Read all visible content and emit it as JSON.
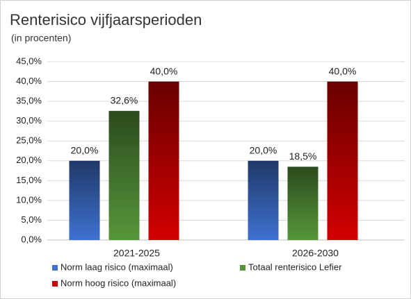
{
  "chart_data": {
    "type": "bar",
    "title": "Renterisico vijfjaarsperioden",
    "subtitle": "(in procenten)",
    "categories": [
      "2021-2025",
      "2026-2030"
    ],
    "series": [
      {
        "name": "Norm laag risico (maximaal)",
        "color": "#3f72d0",
        "values": [
          20,
          20
        ],
        "value_labels": [
          "20,0%",
          "20,0%"
        ]
      },
      {
        "name": "Totaal renterisico Lefier",
        "color": "#56963a",
        "values": [
          32.6,
          18.5
        ],
        "value_labels": [
          "32,6%",
          "18,5%"
        ]
      },
      {
        "name": "Norm hoog risico (maximaal)",
        "color": "#d20000",
        "values": [
          40,
          40
        ],
        "value_labels": [
          "40,0%",
          "40,0%"
        ]
      }
    ],
    "ylim": [
      0,
      45
    ],
    "yticks": [
      {
        "value": 0,
        "label": "0,0%"
      },
      {
        "value": 5,
        "label": "5,0%"
      },
      {
        "value": 10,
        "label": "10,0%"
      },
      {
        "value": 15,
        "label": "15,0%"
      },
      {
        "value": 20,
        "label": "20,0%"
      },
      {
        "value": 25,
        "label": "25,0%"
      },
      {
        "value": 30,
        "label": "30,0%"
      },
      {
        "value": 35,
        "label": "35,0%"
      },
      {
        "value": 40,
        "label": "40,0%"
      },
      {
        "value": 45,
        "label": "45,0%"
      }
    ],
    "grid": true,
    "legend": "bottom"
  }
}
